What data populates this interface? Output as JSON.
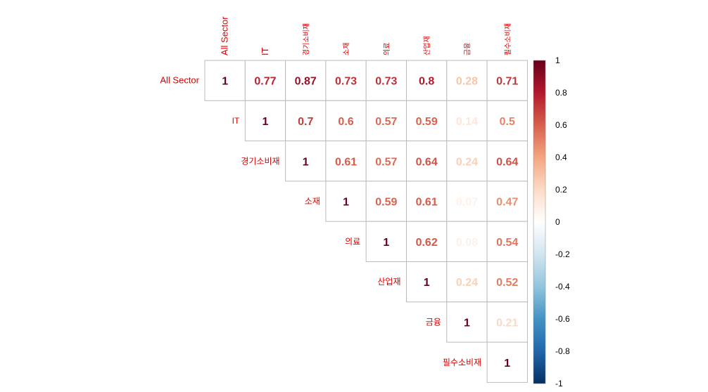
{
  "chart_data": {
    "type": "heatmap",
    "subtype": "correlation-matrix-upper-triangle",
    "labels": [
      "All Sector",
      "IT",
      "경기소비재",
      "소재",
      "의료",
      "산업재",
      "금융",
      "필수소비재"
    ],
    "matrix": [
      [
        1,
        0.77,
        0.87,
        0.73,
        0.73,
        0.8,
        0.28,
        0.71
      ],
      [
        0.77,
        1,
        0.7,
        0.6,
        0.57,
        0.59,
        0.14,
        0.5
      ],
      [
        0.87,
        0.7,
        1,
        0.61,
        0.57,
        0.64,
        0.24,
        0.64
      ],
      [
        0.73,
        0.6,
        0.61,
        1,
        0.59,
        0.61,
        0.07,
        0.47
      ],
      [
        0.73,
        0.57,
        0.57,
        0.59,
        1,
        0.62,
        0.08,
        0.54
      ],
      [
        0.8,
        0.59,
        0.64,
        0.61,
        0.62,
        1,
        0.24,
        0.52
      ],
      [
        0.28,
        0.14,
        0.24,
        0.07,
        0.08,
        0.24,
        1,
        0.21
      ],
      [
        0.71,
        0.5,
        0.64,
        0.47,
        0.54,
        0.52,
        0.21,
        1
      ]
    ],
    "cell_text": [
      [
        "1",
        "0.77",
        "0.87",
        "0.73",
        "0.73",
        "0.8",
        "0.28",
        "0.71"
      ],
      [
        "",
        "1",
        "0.7",
        "0.6",
        "0.57",
        "0.59",
        "0.14",
        "0.5"
      ],
      [
        "",
        "",
        "1",
        "0.61",
        "0.57",
        "0.64",
        "0.24",
        "0.64"
      ],
      [
        "",
        "",
        "",
        "1",
        "0.59",
        "0.61",
        "0.07",
        "0.47"
      ],
      [
        "",
        "",
        "",
        "",
        "1",
        "0.62",
        "0.08",
        "0.54"
      ],
      [
        "",
        "",
        "",
        "",
        "",
        "1",
        "0.24",
        "0.52"
      ],
      [
        "",
        "",
        "",
        "",
        "",
        "",
        "1",
        "0.21"
      ],
      [
        "",
        "",
        "",
        "",
        "",
        "",
        "",
        "1"
      ]
    ],
    "triangle": "upper",
    "label_color": "#dd0000",
    "grid_color": "#bbbbbb",
    "colorbar": {
      "range": [
        -1,
        1
      ],
      "ticks": [
        "1",
        "0.8",
        "0.6",
        "0.4",
        "0.2",
        "0",
        "-0.2",
        "-0.4",
        "-0.6",
        "-0.8",
        "-1"
      ],
      "colors": [
        "#67001f",
        "#b2182b",
        "#d6604d",
        "#f4a582",
        "#fddbc7",
        "#ffffff",
        "#d1e5f0",
        "#92c5de",
        "#4393c3",
        "#2166ac",
        "#053061"
      ]
    }
  }
}
